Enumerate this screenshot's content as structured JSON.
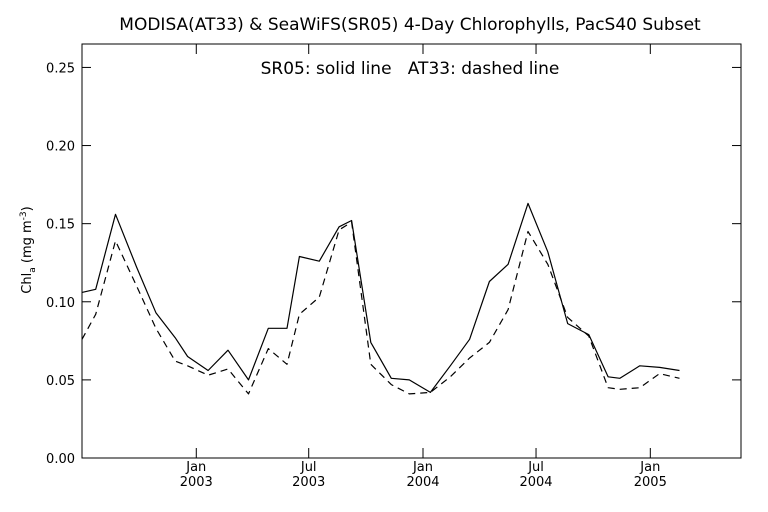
{
  "chart_data": {
    "type": "line",
    "title": "MODISA(AT33) & SeaWiFS(SR05) 4-Day Chlorophylls, PacS40 Subset",
    "annotation": "SR05: solid line   AT33: dashed line",
    "ylabel": {
      "main": "Chl",
      "sub": "a",
      "units": " (mg m",
      "sup": "-3",
      "close": ")"
    },
    "ylim": [
      0.0,
      0.265
    ],
    "yticks": [
      {
        "value": 0.0,
        "label": "0.00"
      },
      {
        "value": 0.05,
        "label": "0.05"
      },
      {
        "value": 0.1,
        "label": "0.10"
      },
      {
        "value": 0.15,
        "label": "0.15"
      },
      {
        "value": 0.2,
        "label": "0.20"
      },
      {
        "value": 0.25,
        "label": "0.25"
      }
    ],
    "xlim": [
      "2002-07-01",
      "2005-05-27"
    ],
    "xticks": [
      {
        "date": "2003-01-01",
        "label1": "Jan",
        "label2": "2003"
      },
      {
        "date": "2003-07-01",
        "label1": "Jul",
        "label2": "2003"
      },
      {
        "date": "2004-01-01",
        "label1": "Jan",
        "label2": "2004"
      },
      {
        "date": "2004-07-01",
        "label1": "Jul",
        "label2": "2004"
      },
      {
        "date": "2005-01-01",
        "label1": "Jan",
        "label2": "2005"
      }
    ],
    "series": [
      {
        "name": "SR05",
        "style": "solid",
        "color": "#000000",
        "points": [
          {
            "x": "2002-07-01",
            "y": 0.106
          },
          {
            "x": "2002-07-23",
            "y": 0.108
          },
          {
            "x": "2002-08-24",
            "y": 0.156
          },
          {
            "x": "2002-09-27",
            "y": 0.122
          },
          {
            "x": "2002-10-28",
            "y": 0.093
          },
          {
            "x": "2002-11-28",
            "y": 0.077
          },
          {
            "x": "2002-12-18",
            "y": 0.065
          },
          {
            "x": "2003-01-20",
            "y": 0.056
          },
          {
            "x": "2003-02-21",
            "y": 0.069
          },
          {
            "x": "2003-03-26",
            "y": 0.05
          },
          {
            "x": "2003-04-27",
            "y": 0.083
          },
          {
            "x": "2003-05-27",
            "y": 0.083
          },
          {
            "x": "2003-06-16",
            "y": 0.129
          },
          {
            "x": "2003-07-18",
            "y": 0.126
          },
          {
            "x": "2003-08-19",
            "y": 0.148
          },
          {
            "x": "2003-09-08",
            "y": 0.152
          },
          {
            "x": "2003-10-09",
            "y": 0.074
          },
          {
            "x": "2003-11-11",
            "y": 0.051
          },
          {
            "x": "2003-12-10",
            "y": 0.05
          },
          {
            "x": "2004-01-13",
            "y": 0.042
          },
          {
            "x": "2004-02-14",
            "y": 0.059
          },
          {
            "x": "2004-03-16",
            "y": 0.076
          },
          {
            "x": "2004-04-17",
            "y": 0.113
          },
          {
            "x": "2004-05-17",
            "y": 0.124
          },
          {
            "x": "2004-06-18",
            "y": 0.163
          },
          {
            "x": "2004-07-20",
            "y": 0.132
          },
          {
            "x": "2004-08-21",
            "y": 0.086
          },
          {
            "x": "2004-09-24",
            "y": 0.079
          },
          {
            "x": "2004-10-25",
            "y": 0.052
          },
          {
            "x": "2004-11-13",
            "y": 0.051
          },
          {
            "x": "2004-12-15",
            "y": 0.059
          },
          {
            "x": "2005-01-16",
            "y": 0.058
          },
          {
            "x": "2005-02-17",
            "y": 0.056
          }
        ]
      },
      {
        "name": "AT33",
        "style": "dashed",
        "color": "#000000",
        "points": [
          {
            "x": "2002-07-01",
            "y": 0.076
          },
          {
            "x": "2002-07-23",
            "y": 0.092
          },
          {
            "x": "2002-08-24",
            "y": 0.139
          },
          {
            "x": "2002-09-27",
            "y": 0.11
          },
          {
            "x": "2002-10-28",
            "y": 0.083
          },
          {
            "x": "2002-11-28",
            "y": 0.062
          },
          {
            "x": "2002-12-18",
            "y": 0.059
          },
          {
            "x": "2003-01-20",
            "y": 0.053
          },
          {
            "x": "2003-02-21",
            "y": 0.057
          },
          {
            "x": "2003-03-26",
            "y": 0.041
          },
          {
            "x": "2003-04-27",
            "y": 0.07
          },
          {
            "x": "2003-05-27",
            "y": 0.06
          },
          {
            "x": "2003-06-16",
            "y": 0.092
          },
          {
            "x": "2003-07-18",
            "y": 0.103
          },
          {
            "x": "2003-08-19",
            "y": 0.146
          },
          {
            "x": "2003-09-08",
            "y": 0.151
          },
          {
            "x": "2003-10-09",
            "y": 0.06
          },
          {
            "x": "2003-11-11",
            "y": 0.047
          },
          {
            "x": "2003-12-10",
            "y": 0.041
          },
          {
            "x": "2004-01-13",
            "y": 0.042
          },
          {
            "x": "2004-02-14",
            "y": 0.052
          },
          {
            "x": "2004-03-16",
            "y": 0.064
          },
          {
            "x": "2004-04-17",
            "y": 0.074
          },
          {
            "x": "2004-05-17",
            "y": 0.095
          },
          {
            "x": "2004-06-18",
            "y": 0.145
          },
          {
            "x": "2004-07-20",
            "y": 0.124
          },
          {
            "x": "2004-08-21",
            "y": 0.09
          },
          {
            "x": "2004-09-24",
            "y": 0.078
          },
          {
            "x": "2004-10-25",
            "y": 0.045
          },
          {
            "x": "2004-11-13",
            "y": 0.044
          },
          {
            "x": "2004-12-15",
            "y": 0.045
          },
          {
            "x": "2005-01-16",
            "y": 0.054
          },
          {
            "x": "2005-02-17",
            "y": 0.051
          }
        ]
      }
    ]
  }
}
